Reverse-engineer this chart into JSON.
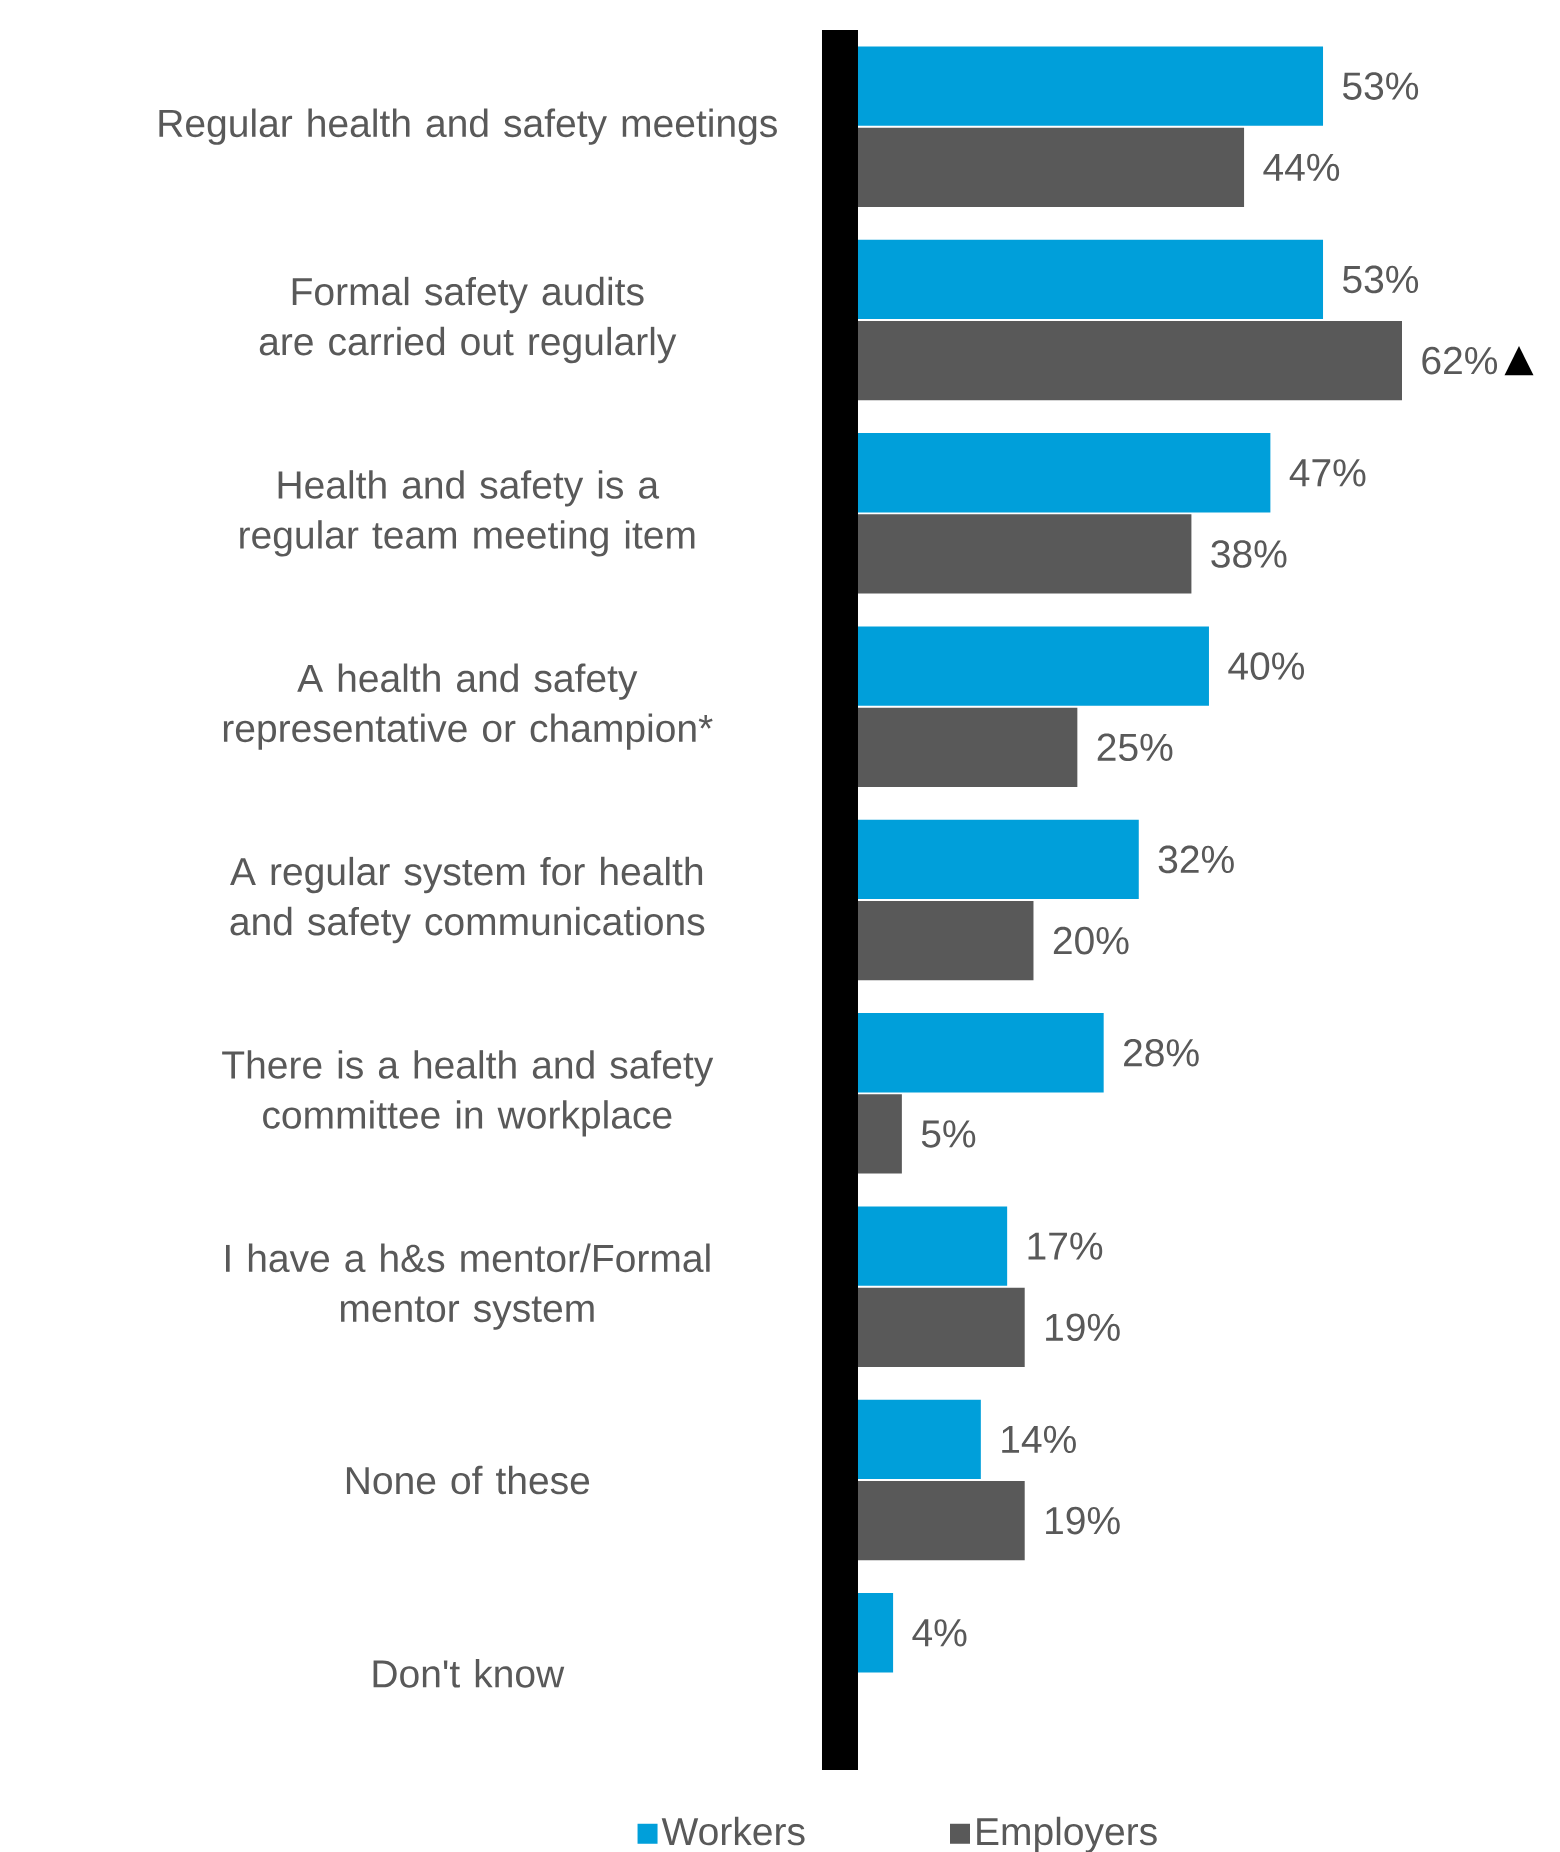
{
  "chart_data": {
    "type": "bar",
    "orientation": "horizontal",
    "categories": [
      "Regular health and safety meetings",
      "Formal safety audits are carried out regularly",
      "Health and safety is a regular team meeting item",
      "A health and safety representative or champion*",
      "A regular system for health and safety communications",
      "There is a health and safety committee in workplace",
      "I have a h&s mentor/Formal mentor system",
      "None of these",
      "Don't know"
    ],
    "series": [
      {
        "name": "Workers",
        "color": "#009fda",
        "values": [
          53,
          53,
          47,
          40,
          32,
          28,
          17,
          14,
          4
        ],
        "value_labels": [
          "53%",
          "53%",
          "47%",
          "40%",
          "32%",
          "28%",
          "17%",
          "14%",
          "4%"
        ]
      },
      {
        "name": "Employers",
        "color": "#595959",
        "values": [
          44,
          62,
          38,
          25,
          20,
          5,
          19,
          19,
          null
        ],
        "value_labels": [
          "44%",
          "62%",
          "38%",
          "25%",
          "20%",
          "5%",
          "19%",
          "19%",
          null
        ]
      }
    ],
    "tick_labels": "y",
    "legend": "bottom",
    "grid": false,
    "annotations": [
      {
        "text": "▲",
        "x": 62,
        "y": "Formal safety audits are carried out regularly"
      }
    ]
  }
}
